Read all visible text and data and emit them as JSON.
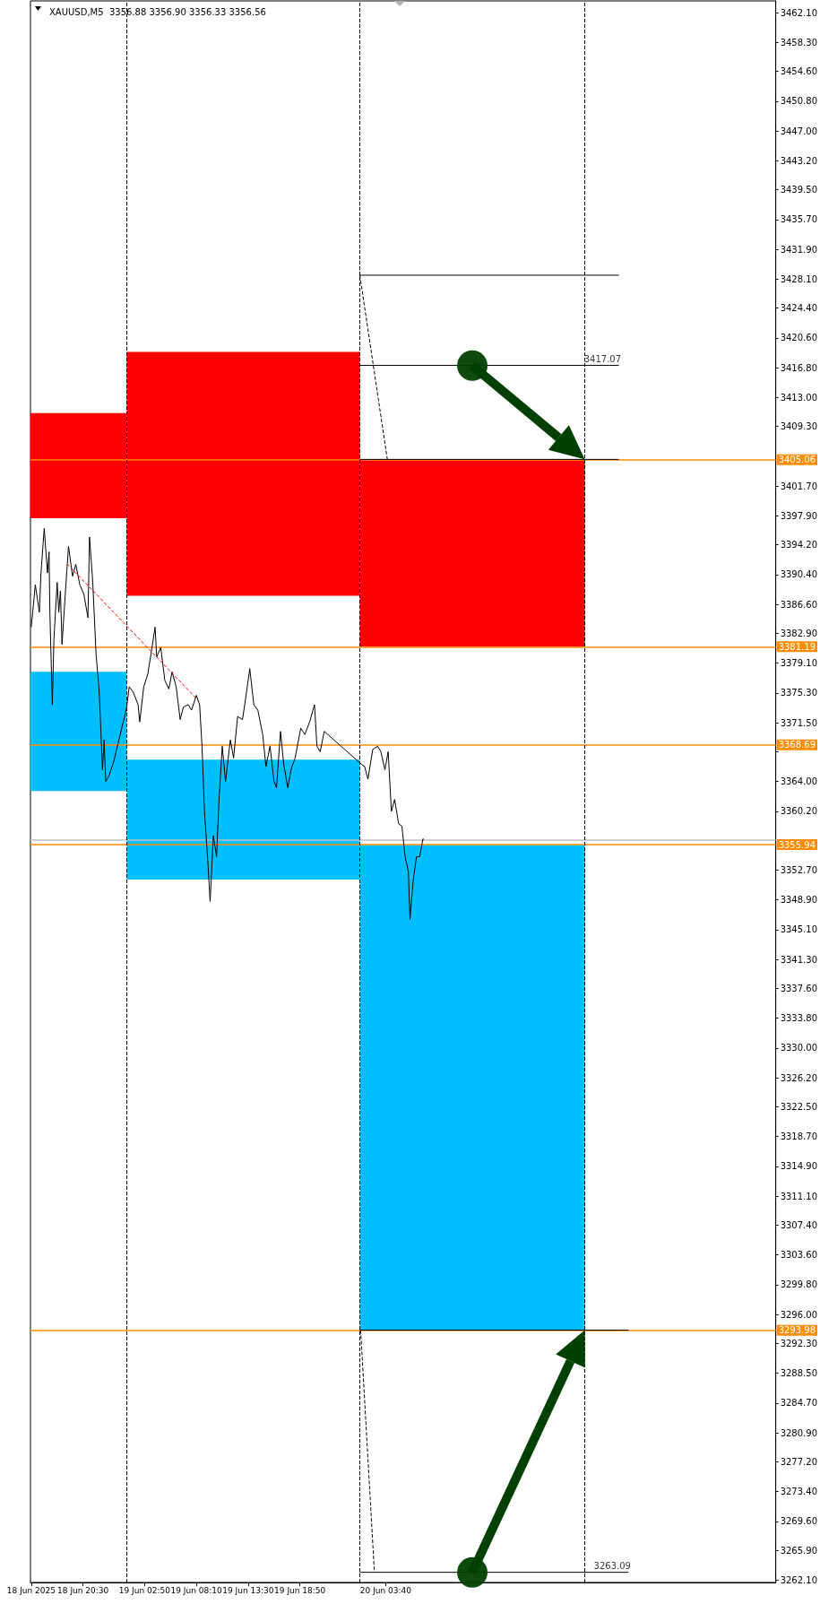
{
  "chart_data": {
    "type": "line",
    "title": "XAUUSD,M5  3356.88 3356.90 3356.33 3356.56",
    "xlim": [
      "2025-06-18T15:05",
      "2025-06-21T19:50"
    ],
    "xticks": [
      {
        "value": "2025-06-18T15:10",
        "label": "18 Jun 2025"
      },
      {
        "value": "2025-06-18T20:30",
        "label": "18 Jun 20:30"
      },
      {
        "value": "2025-06-19T02:50",
        "label": "19 Jun 02:50"
      },
      {
        "value": "2025-06-19T08:10",
        "label": "19 Jun 08:10"
      },
      {
        "value": "2025-06-19T13:30",
        "label": "19 Jun 13:30"
      },
      {
        "value": "2025-06-19T18:50",
        "label": "19 Jun 18:50"
      },
      {
        "value": "2025-06-20T03:40",
        "label": "20 Jun 03:40"
      }
    ],
    "ylim": [
      3261.8,
      3463.6
    ],
    "yticks": [
      {
        "value": 3462.1,
        "label": "3462.10"
      },
      {
        "value": 3458.3,
        "label": "3458.30"
      },
      {
        "value": 3454.6,
        "label": "3454.60"
      },
      {
        "value": 3450.8,
        "label": "3450.80"
      },
      {
        "value": 3447.0,
        "label": "3447.00"
      },
      {
        "value": 3443.2,
        "label": "3443.20"
      },
      {
        "value": 3439.5,
        "label": "3439.50"
      },
      {
        "value": 3435.7,
        "label": "3435.70"
      },
      {
        "value": 3431.9,
        "label": "3431.90"
      },
      {
        "value": 3428.1,
        "label": "3428.10"
      },
      {
        "value": 3424.4,
        "label": "3424.40"
      },
      {
        "value": 3420.6,
        "label": "3420.60"
      },
      {
        "value": 3416.8,
        "label": "3416.80"
      },
      {
        "value": 3413.0,
        "label": "3413.00"
      },
      {
        "value": 3409.3,
        "label": "3409.30"
      },
      {
        "value": 3401.7,
        "label": "3401.70"
      },
      {
        "value": 3397.9,
        "label": "3397.90"
      },
      {
        "value": 3394.2,
        "label": "3394.20"
      },
      {
        "value": 3390.4,
        "label": "3390.40"
      },
      {
        "value": 3386.6,
        "label": "3386.60"
      },
      {
        "value": 3382.9,
        "label": "3382.90"
      },
      {
        "value": 3379.1,
        "label": "3379.10"
      },
      {
        "value": 3375.3,
        "label": "3375.30"
      },
      {
        "value": 3371.5,
        "label": "3371.50"
      },
      {
        "value": 3367.8,
        "label": null
      },
      {
        "value": 3364.0,
        "label": "3364.00"
      },
      {
        "value": 3360.2,
        "label": "3360.20"
      },
      {
        "value": 3352.7,
        "label": "3352.70"
      },
      {
        "value": 3348.9,
        "label": "3348.90"
      },
      {
        "value": 3345.1,
        "label": "3345.10"
      },
      {
        "value": 3341.3,
        "label": "3341.30"
      },
      {
        "value": 3337.6,
        "label": "3337.60"
      },
      {
        "value": 3333.8,
        "label": "3333.80"
      },
      {
        "value": 3330.0,
        "label": "3330.00"
      },
      {
        "value": 3326.2,
        "label": "3326.20"
      },
      {
        "value": 3322.5,
        "label": "3322.50"
      },
      {
        "value": 3318.7,
        "label": "3318.70"
      },
      {
        "value": 3314.9,
        "label": "3314.90"
      },
      {
        "value": 3311.1,
        "label": "3311.10"
      },
      {
        "value": 3307.4,
        "label": "3307.40"
      },
      {
        "value": 3303.6,
        "label": "3303.60"
      },
      {
        "value": 3299.8,
        "label": "3299.80"
      },
      {
        "value": 3296.0,
        "label": "3296.00"
      },
      {
        "value": 3292.3,
        "label": "3292.30"
      },
      {
        "value": 3288.5,
        "label": "3288.50"
      },
      {
        "value": 3284.7,
        "label": "3284.70"
      },
      {
        "value": 3280.9,
        "label": "3280.90"
      },
      {
        "value": 3277.2,
        "label": "3277.20"
      },
      {
        "value": 3273.4,
        "label": "3273.40"
      },
      {
        "value": 3269.6,
        "label": "3269.60"
      },
      {
        "value": 3265.9,
        "label": "3265.90"
      },
      {
        "value": 3262.1,
        "label": "3262.10"
      }
    ],
    "grid": false,
    "marker": "none",
    "series": [
      {
        "type": "histogram",
        "color": "#ff0000",
        "bins": [
          "2025-06-18T15:05",
          "2025-06-19T01:00",
          "2025-06-20T01:00",
          "2025-06-21T00:10"
        ],
        "base": [
          3397.6,
          3387.7,
          3381.2
        ],
        "values": [
          13.4,
          31.1,
          23.9
        ]
      },
      {
        "type": "histogram",
        "color": "#00bfff",
        "bins": [
          "2025-06-18T15:05",
          "2025-06-19T01:00",
          "2025-06-20T01:00",
          "2025-06-21T00:10"
        ],
        "base": [
          3362.8,
          3351.5,
          3294.0
        ],
        "values": [
          15.2,
          15.3,
          61.9
        ]
      },
      {
        "color": "#000000",
        "x": [
          "2025-06-18T15:10",
          "2025-06-18T15:35",
          "2025-06-18T16:00",
          "2025-06-18T16:10",
          "2025-06-18T16:30",
          "2025-06-18T16:50",
          "2025-06-18T17:00",
          "2025-06-18T17:05",
          "2025-06-18T17:20",
          "2025-06-18T17:30",
          "2025-06-18T17:50",
          "2025-06-18T18:00",
          "2025-06-18T18:10",
          "2025-06-18T18:20",
          "2025-06-18T18:40",
          "2025-06-18T19:00",
          "2025-06-18T19:25",
          "2025-06-18T19:45",
          "2025-06-18T20:10",
          "2025-06-18T20:35",
          "2025-06-18T21:00",
          "2025-06-18T21:10",
          "2025-06-18T21:30",
          "2025-06-18T21:50",
          "2025-06-18T22:10",
          "2025-06-18T22:30",
          "2025-06-18T22:40",
          "2025-06-18T22:50",
          "2025-06-18T23:10",
          "2025-06-18T23:40",
          "2025-06-19T01:00",
          "2025-06-19T01:15",
          "2025-06-19T01:40",
          "2025-06-19T02:10",
          "2025-06-19T02:20",
          "2025-06-19T02:45",
          "2025-06-19T03:10",
          "2025-06-19T03:30",
          "2025-06-19T03:55",
          "2025-06-19T04:05",
          "2025-06-19T04:30",
          "2025-06-19T04:55",
          "2025-06-19T05:20",
          "2025-06-19T05:40",
          "2025-06-19T06:05",
          "2025-06-19T06:30",
          "2025-06-19T06:50",
          "2025-06-19T07:20",
          "2025-06-19T07:40",
          "2025-06-19T08:10",
          "2025-06-19T08:30",
          "2025-06-19T08:45",
          "2025-06-19T09:00",
          "2025-06-19T09:20",
          "2025-06-19T09:35",
          "2025-06-19T09:55",
          "2025-06-19T10:15",
          "2025-06-19T10:30",
          "2025-06-19T10:50",
          "2025-06-19T11:10",
          "2025-06-19T11:40",
          "2025-06-19T12:00",
          "2025-06-19T12:25",
          "2025-06-19T12:55",
          "2025-06-19T13:20",
          "2025-06-19T13:40",
          "2025-06-19T14:05",
          "2025-06-19T14:30",
          "2025-06-19T15:00",
          "2025-06-19T15:20",
          "2025-06-19T15:45",
          "2025-06-19T16:10",
          "2025-06-19T16:25",
          "2025-06-19T16:50",
          "2025-06-19T17:10",
          "2025-06-19T17:35",
          "2025-06-19T17:55",
          "2025-06-19T18:20",
          "2025-06-19T18:55",
          "2025-06-19T19:20",
          "2025-06-19T19:50",
          "2025-06-19T20:20",
          "2025-06-19T20:35",
          "2025-06-19T20:55",
          "2025-06-19T21:20",
          "2025-06-20T01:10",
          "2025-06-20T01:30",
          "2025-06-20T01:50",
          "2025-06-20T02:20",
          "2025-06-20T02:50",
          "2025-06-20T03:10",
          "2025-06-20T03:35",
          "2025-06-20T03:55",
          "2025-06-20T04:15",
          "2025-06-20T04:35",
          "2025-06-20T05:00",
          "2025-06-20T05:20",
          "2025-06-20T05:40",
          "2025-06-20T06:00",
          "2025-06-20T06:10",
          "2025-06-20T06:30",
          "2025-06-20T06:50",
          "2025-06-20T07:10",
          "2025-06-20T07:30",
          "2025-06-20T07:35"
        ],
        "values": [
          3383.7,
          3389.1,
          3385.6,
          3390.6,
          3396.3,
          3390.6,
          3393.3,
          3385.6,
          3373.8,
          3382.2,
          3389.4,
          3385.6,
          3388.3,
          3381.5,
          3387.9,
          3394.0,
          3390.2,
          3391.7,
          3389.1,
          3387.9,
          3384.9,
          3395.2,
          3389.4,
          3380.3,
          3375.4,
          3365.5,
          3369.3,
          3364.0,
          3364.7,
          3366.6,
          3373.5,
          3376.1,
          3375.4,
          3373.8,
          3371.6,
          3376.1,
          3377.7,
          3380.3,
          3383.7,
          3379.9,
          3381.1,
          3376.9,
          3375.8,
          3378.0,
          3376.1,
          3371.9,
          3373.5,
          3373.8,
          3373.1,
          3375.0,
          3373.8,
          3368.5,
          3360.2,
          3354.1,
          3348.7,
          3357.1,
          3354.4,
          3361.7,
          3368.5,
          3364.0,
          3369.3,
          3367.0,
          3372.3,
          3371.9,
          3375.4,
          3378.4,
          3373.8,
          3373.1,
          3370.0,
          3365.9,
          3368.5,
          3364.0,
          3363.2,
          3370.4,
          3366.2,
          3363.2,
          3365.5,
          3367.0,
          3370.8,
          3370.0,
          3371.6,
          3373.8,
          3368.5,
          3367.8,
          3370.4,
          3366.2,
          3365.9,
          3364.3,
          3368.1,
          3368.5,
          3367.8,
          3365.5,
          3367.8,
          3360.2,
          3361.7,
          3358.6,
          3358.3,
          3354.4,
          3352.5,
          3346.4,
          3351.4,
          3354.4,
          3354.4,
          3356.7,
          3356.6
        ]
      },
      {
        "color": "#000000",
        "x": [
          "2025-06-20T01:00",
          "2025-06-21T03:40"
        ],
        "values": [
          3428.6,
          3428.6
        ]
      },
      {
        "color": "#000000",
        "x": [
          "2025-06-20T01:00",
          "2025-06-21T03:40"
        ],
        "values": [
          3417.1,
          3417.1
        ]
      },
      {
        "color": "#000000",
        "x": [
          "2025-06-20T01:00",
          "2025-06-21T03:40"
        ],
        "values": [
          3405.1,
          3405.1
        ]
      },
      {
        "color": "#000000",
        "x": [
          "2025-06-20T01:00",
          "2025-06-21T04:40"
        ],
        "values": [
          3294.0,
          3294.0
        ]
      },
      {
        "color": "#000000",
        "x": [
          "2025-06-20T01:00",
          "2025-06-21T04:40"
        ],
        "values": [
          3263.1,
          3263.1
        ]
      },
      {
        "color": "#000000",
        "line_style": "dashed",
        "x": [
          "2025-06-20T01:00",
          "2025-06-20T03:50"
        ],
        "values": [
          3428.6,
          3405.1
        ]
      },
      {
        "color": "#000000",
        "line_style": "dashed",
        "x": [
          "2025-06-20T01:05",
          "2025-06-20T02:30"
        ],
        "values": [
          3294.0,
          3263.1
        ]
      },
      {
        "color": "#ff0000",
        "line_style": "dashed",
        "x": [
          "2025-06-18T18:50",
          "2025-06-19T08:10"
        ],
        "values": [
          3391.8,
          3374.6
        ]
      }
    ],
    "ref_lines": [
      {
        "axis": "y",
        "value": 3405.06,
        "label": "3405.06",
        "color": "#ff8c00"
      },
      {
        "axis": "y",
        "value": 3381.19,
        "label": "3381.19",
        "color": "#ff8c00"
      },
      {
        "axis": "y",
        "value": 3368.69,
        "label": "3368.69",
        "color": "#ff8c00"
      },
      {
        "axis": "y",
        "value": 3356.56,
        "color": "#c0c0c0"
      },
      {
        "axis": "y",
        "value": 3355.94,
        "label": "3355.94",
        "color": "#ff8c00"
      },
      {
        "axis": "y",
        "value": 3293.98,
        "label": "3293.98",
        "color": "#ff8c00"
      },
      {
        "axis": "x",
        "value": "2025-06-19T01:00",
        "color": "#000000",
        "line_style": "dashed"
      },
      {
        "axis": "x",
        "value": "2025-06-20T01:00",
        "color": "#000000",
        "line_style": "dashed"
      },
      {
        "axis": "x",
        "value": "2025-06-21T00:10",
        "color": "#000000",
        "line_style": "dashed"
      }
    ],
    "annotations": [
      {
        "text": "3417.07",
        "x": "2025-06-21T02:00",
        "y": 3417.07
      },
      {
        "text": "3263.09",
        "x": "2025-06-21T03:00",
        "y": 3263.09
      }
    ]
  }
}
